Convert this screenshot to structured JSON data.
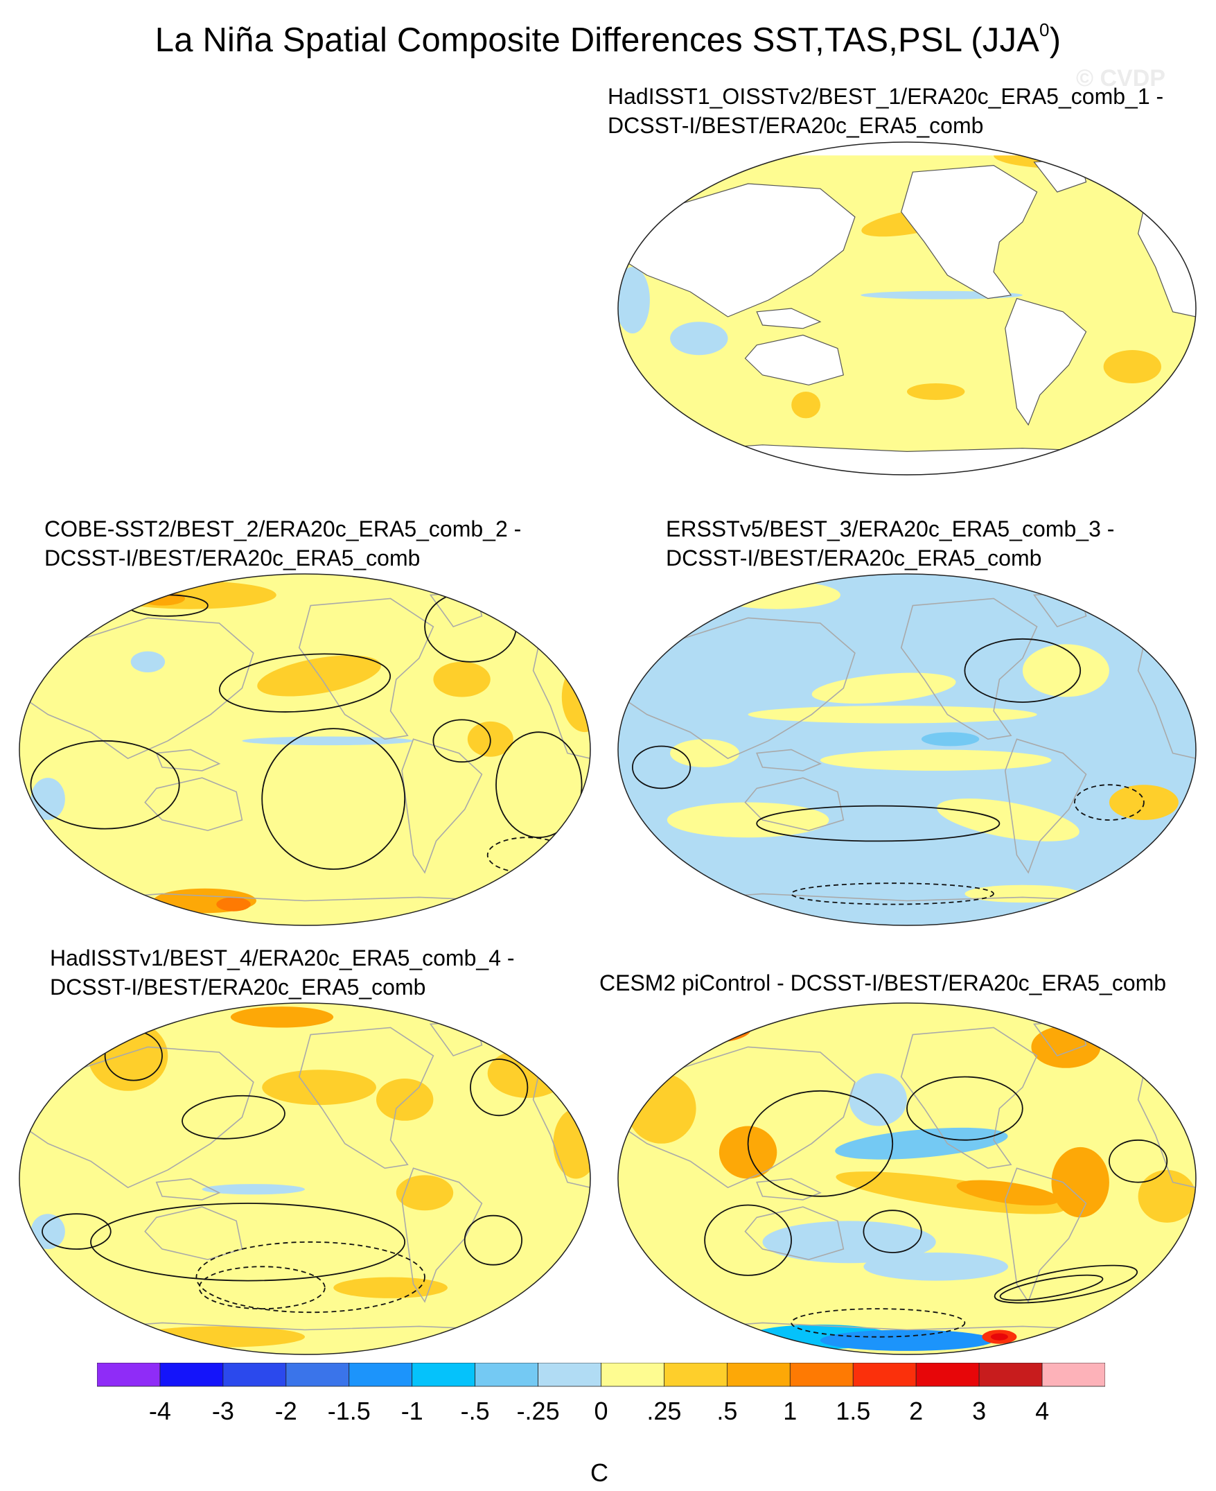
{
  "title": {
    "text": "La Niña Spatial Composite Differences SST,TAS,PSL (JJA",
    "superscript": "0",
    "close": ")"
  },
  "watermark": "© CVDP",
  "chart_data": [
    {
      "type": "heatmap",
      "panel": "top-right",
      "title_line1": "HadISST1_OISSTv2/BEST_1/ERA20c_ERA5_comb_1 -",
      "title_line2": "DCSST-I/BEST/ERA20c_ERA5_comb",
      "projection": "robinson",
      "land_masked": true,
      "psl_contours": false
    },
    {
      "type": "heatmap",
      "panel": "middle-left",
      "title_line1": "COBE-SST2/BEST_2/ERA20c_ERA5_comb_2 -",
      "title_line2": "DCSST-I/BEST/ERA20c_ERA5_comb",
      "projection": "robinson",
      "land_masked": false,
      "psl_contours": true
    },
    {
      "type": "heatmap",
      "panel": "middle-right",
      "title_line1": "ERSSTv5/BEST_3/ERA20c_ERA5_comb_3 -",
      "title_line2": "DCSST-I/BEST/ERA20c_ERA5_comb",
      "projection": "robinson",
      "land_masked": false,
      "psl_contours": true
    },
    {
      "type": "heatmap",
      "panel": "bottom-left",
      "title_line1": "HadISSTv1/BEST_4/ERA20c_ERA5_comb_4 -",
      "title_line2": "DCSST-I/BEST/ERA20c_ERA5_comb",
      "projection": "robinson",
      "land_masked": false,
      "psl_contours": true
    },
    {
      "type": "heatmap",
      "panel": "bottom-right",
      "title_line1": "CESM2 piControl - DCSST-I/BEST/ERA20c_ERA5_comb",
      "title_line2": "",
      "projection": "robinson",
      "land_masked": false,
      "psl_contours": true
    }
  ],
  "colorbar": {
    "unit": "C",
    "labels": [
      "-4",
      "-3",
      "-2",
      "-1.5",
      "-1",
      "-.5",
      "-.25",
      "0",
      ".25",
      ".5",
      "1",
      "1.5",
      "2",
      "3",
      "4"
    ],
    "colors": [
      "#8f2cf7",
      "#1414fa",
      "#2b49ed",
      "#3a74ea",
      "#1c94fb",
      "#05c2fb",
      "#74c9f3",
      "#b1dcf4",
      "#fefc91",
      "#fecf2b",
      "#fda807",
      "#fe7a03",
      "#fb300b",
      "#e70609",
      "#c81c1d",
      "#fdb2b9"
    ]
  }
}
